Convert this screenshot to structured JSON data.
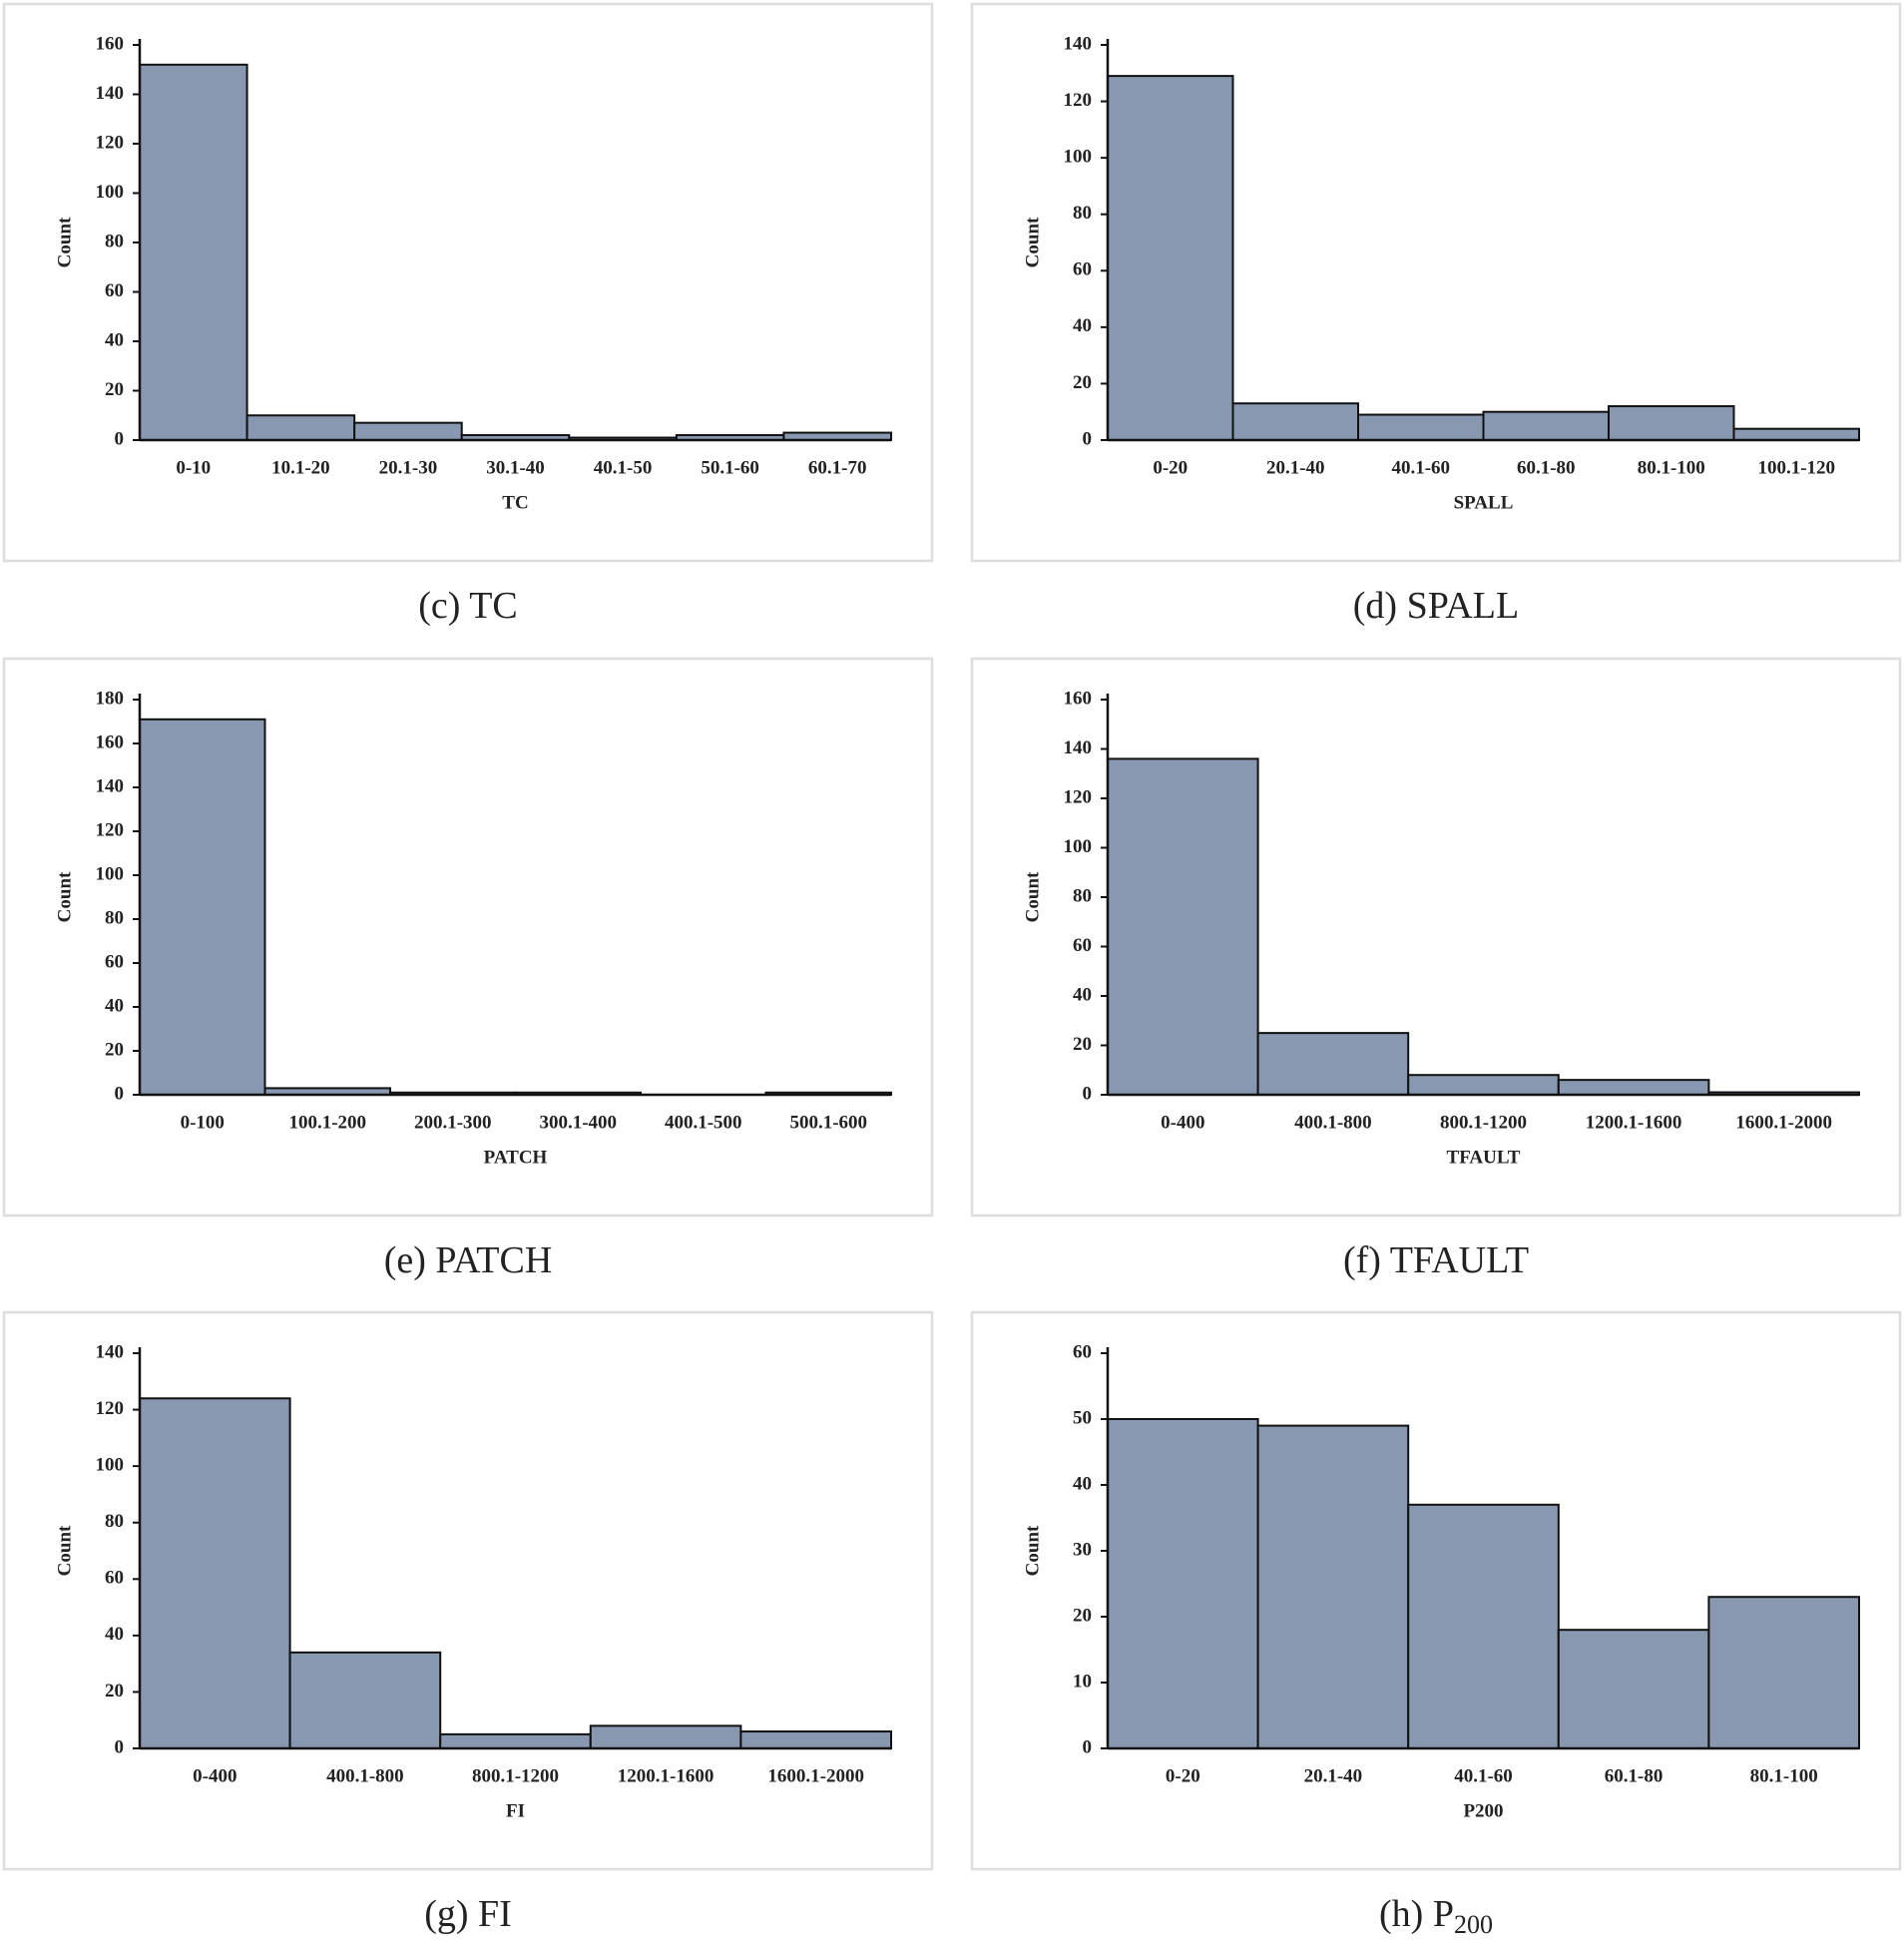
{
  "chart_data": [
    {
      "type": "bar",
      "caption": "(c) TC",
      "xlabel": "TC",
      "ylabel": "Count",
      "color": "#8898b0",
      "categories": [
        "0-10",
        "10.1-20",
        "20.1-30",
        "30.1-40",
        "40.1-50",
        "50.1-60",
        "60.1-70"
      ],
      "values": [
        152,
        10,
        7,
        2,
        1,
        2,
        3
      ],
      "ylim": [
        0,
        160
      ],
      "yticks": [
        0,
        20,
        40,
        60,
        80,
        100,
        120,
        140,
        160
      ]
    },
    {
      "type": "bar",
      "caption": "(d) SPALL",
      "xlabel": "SPALL",
      "ylabel": "Count",
      "color": "#8898b0",
      "categories": [
        "0-20",
        "20.1-40",
        "40.1-60",
        "60.1-80",
        "80.1-100",
        "100.1-120"
      ],
      "values": [
        129,
        13,
        9,
        10,
        12,
        4
      ],
      "ylim": [
        0,
        140
      ],
      "yticks": [
        0,
        20,
        40,
        60,
        80,
        100,
        120,
        140
      ]
    },
    {
      "type": "bar",
      "caption": "(e) PATCH",
      "xlabel": "PATCH",
      "ylabel": "Count",
      "color": "#8898b0",
      "categories": [
        "0-100",
        "100.1-200",
        "200.1-300",
        "300.1-400",
        "400.1-500",
        "500.1-600"
      ],
      "values": [
        171,
        3,
        1,
        1,
        0,
        1
      ],
      "ylim": [
        0,
        180
      ],
      "yticks": [
        0,
        20,
        40,
        60,
        80,
        100,
        120,
        140,
        160,
        180
      ]
    },
    {
      "type": "bar",
      "caption": "(f) TFAULT",
      "xlabel": "TFAULT",
      "ylabel": "Count",
      "color": "#8898b0",
      "categories": [
        "0-400",
        "400.1-800",
        "800.1-1200",
        "1200.1-1600",
        "1600.1-2000"
      ],
      "values": [
        136,
        25,
        8,
        6,
        1
      ],
      "ylim": [
        0,
        160
      ],
      "yticks": [
        0,
        20,
        40,
        60,
        80,
        100,
        120,
        140,
        160
      ]
    },
    {
      "type": "bar",
      "caption": "(g) FI",
      "xlabel": "FI",
      "ylabel": "Count",
      "color": "#8898b0",
      "categories": [
        "0-400",
        "400.1-800",
        "800.1-1200",
        "1200.1-1600",
        "1600.1-2000"
      ],
      "values": [
        124,
        34,
        5,
        8,
        6
      ],
      "ylim": [
        0,
        140
      ],
      "yticks": [
        0,
        20,
        40,
        60,
        80,
        100,
        120,
        140
      ]
    },
    {
      "type": "bar",
      "caption": "(h) P",
      "caption_sub": "200",
      "xlabel": "P200",
      "ylabel": "Count",
      "color": "#8898b0",
      "categories": [
        "0-20",
        "20.1-40",
        "40.1-60",
        "60.1-80",
        "80.1-100"
      ],
      "values": [
        50,
        49,
        37,
        18,
        23
      ],
      "ylim": [
        0,
        60
      ],
      "yticks": [
        0,
        10,
        20,
        30,
        40,
        50,
        60
      ]
    }
  ]
}
